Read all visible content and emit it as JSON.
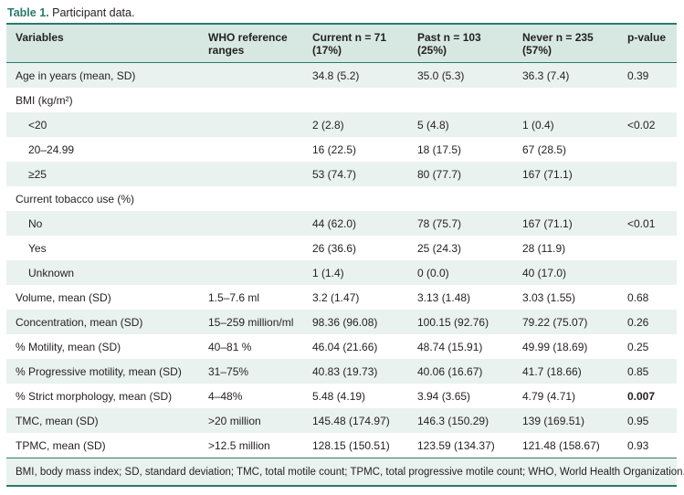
{
  "caption": {
    "label": "Table 1.",
    "text": "Participant data."
  },
  "headers": [
    [
      "Variables",
      ""
    ],
    [
      "WHO reference",
      "ranges"
    ],
    [
      "Current n = 71",
      "(17%)"
    ],
    [
      "Past n = 103",
      "(25%)"
    ],
    [
      "Never n = 235",
      "(57%)"
    ],
    [
      "p-value",
      ""
    ]
  ],
  "rows": [
    [
      "Age in years (mean, SD)",
      "",
      "34.8 (5.2)",
      "35.0 (5.3)",
      "36.3 (7.4)",
      "0.39"
    ],
    [
      "BMI (kg/m²)",
      "",
      "",
      "",
      "",
      ""
    ],
    [
      "<20",
      "",
      "2 (2.8)",
      "5 (4.8)",
      "1 (0.4)",
      "<0.02"
    ],
    [
      "20–24.99",
      "",
      "16 (22.5)",
      "18 (17.5)",
      "67 (28.5)",
      ""
    ],
    [
      "≥25",
      "",
      "53 (74.7)",
      "80 (77.7)",
      "167 (71.1)",
      ""
    ],
    [
      "Current tobacco use (%)",
      "",
      "",
      "",
      "",
      ""
    ],
    [
      "No",
      "",
      "44 (62.0)",
      "78 (75.7)",
      "167 (71.1)",
      "<0.01"
    ],
    [
      "Yes",
      "",
      "26 (36.6)",
      "25 (24.3)",
      "28 (11.9)",
      ""
    ],
    [
      "Unknown",
      "",
      "1 (1.4)",
      "0 (0.0)",
      "40 (17.0)",
      ""
    ],
    [
      "Volume, mean (SD)",
      "1.5–7.6 ml",
      "3.2 (1.47)",
      "3.13 (1.48)",
      "3.03 (1.55)",
      "0.68"
    ],
    [
      "Concentration, mean (SD)",
      "15–259 million/ml",
      "98.36 (96.08)",
      "100.15 (92.76)",
      "79.22 (75.07)",
      "0.26"
    ],
    [
      "% Motility, mean (SD)",
      "40–81 %",
      "46.04 (21.66)",
      "48.74 (15.91)",
      "49.99 (18.69)",
      "0.25"
    ],
    [
      "% Progressive motility, mean (SD)",
      "31–75%",
      "40.83 (19.73)",
      "40.06 (16.67)",
      "41.7 (18.66)",
      "0.85"
    ],
    [
      "% Strict morphology, mean (SD)",
      "4–48%",
      "5.48 (4.19)",
      "3.94 (3.65)",
      "4.79 (4.71)",
      "0.007"
    ],
    [
      "TMC, mean (SD)",
      ">20 million",
      "145.48 (174.97)",
      "146.3 (150.29)",
      "139 (169.51)",
      "0.95"
    ],
    [
      "TPMC, mean (SD)",
      ">12.5 million",
      "128.15 (150.51)",
      "123.59 (134.37)",
      "121.48 (158.67)",
      "0.93"
    ]
  ],
  "footnote": "BMI, body mass index; SD, standard deviation; TMC, total motile count; TPMC, total progressive motile count; WHO, World Health Organization.",
  "colors": {
    "accent": "#2a7a6b",
    "header_bg": "#d7e8e3",
    "shade_bg": "#e9f2ef"
  }
}
